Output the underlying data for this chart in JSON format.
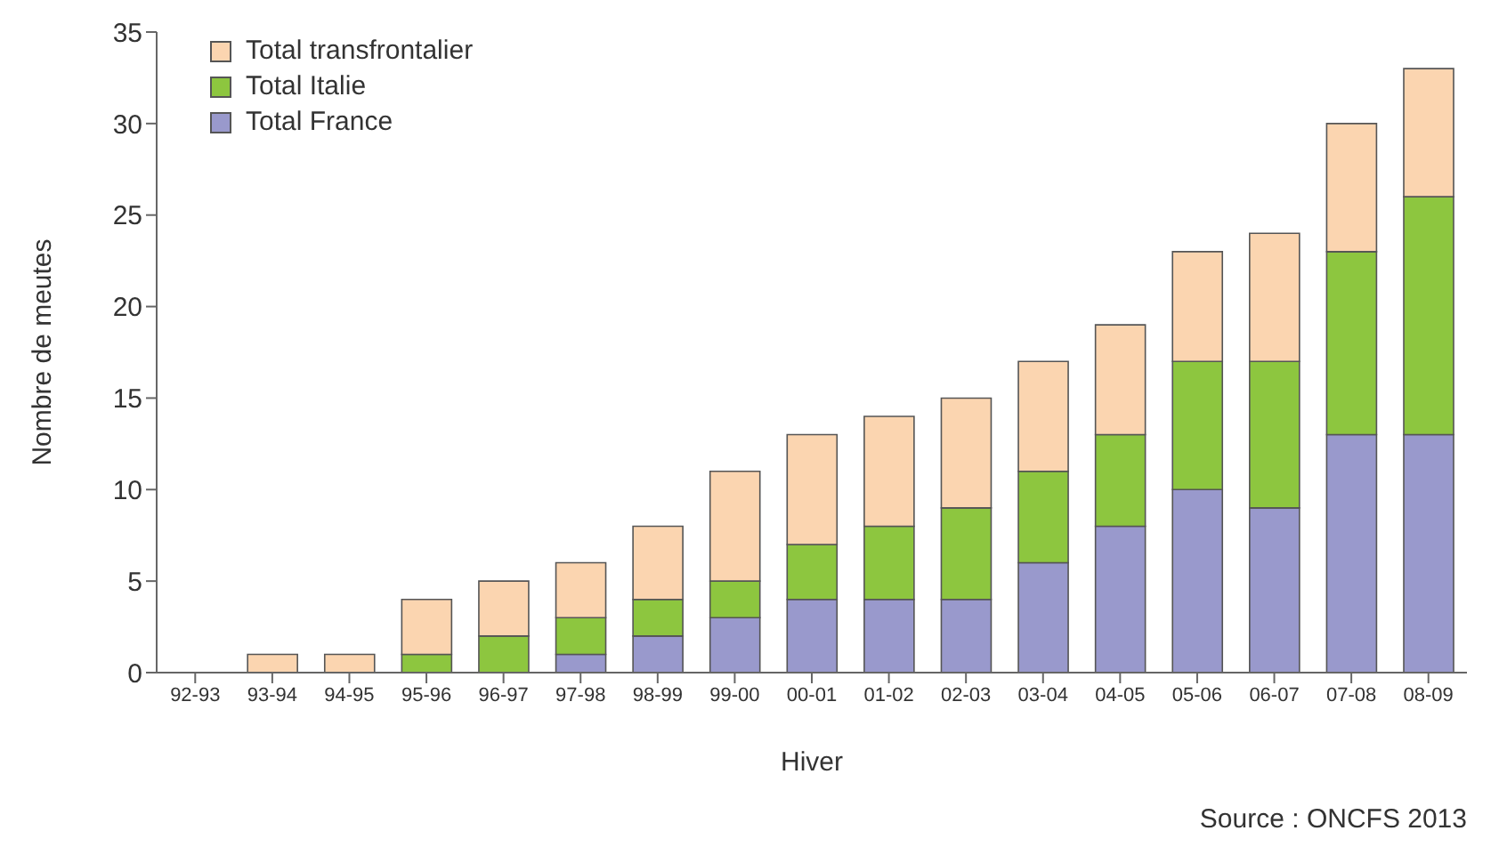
{
  "chart_data": {
    "type": "bar",
    "stacked": true,
    "xlabel": "Hiver",
    "ylabel": "Nombre de meutes",
    "categories": [
      "92-93",
      "93-94",
      "94-95",
      "95-96",
      "96-97",
      "97-98",
      "98-99",
      "99-00",
      "00-01",
      "01-02",
      "02-03",
      "03-04",
      "04-05",
      "05-06",
      "06-07",
      "07-08",
      "08-09"
    ],
    "series": [
      {
        "name": "Total France",
        "color": "#9999cc",
        "values": [
          0,
          0,
          0,
          0,
          0,
          1,
          2,
          3,
          4,
          4,
          4,
          6,
          8,
          10,
          9,
          13,
          13
        ]
      },
      {
        "name": "Total Italie",
        "color": "#8dc63f",
        "values": [
          0,
          0,
          0,
          1,
          2,
          2,
          2,
          2,
          3,
          4,
          5,
          5,
          5,
          7,
          8,
          10,
          13
        ]
      },
      {
        "name": "Total transfrontalier",
        "color": "#fbd5b0",
        "values": [
          0,
          1,
          1,
          3,
          3,
          3,
          4,
          6,
          6,
          6,
          6,
          6,
          6,
          6,
          7,
          7,
          7
        ]
      }
    ],
    "ylim": [
      0,
      35
    ],
    "yticks": [
      0,
      5,
      10,
      15,
      20,
      25,
      30,
      35
    ],
    "grid": false,
    "legend": "top left",
    "annotations": [
      "Source : ONCFS 2013"
    ]
  }
}
